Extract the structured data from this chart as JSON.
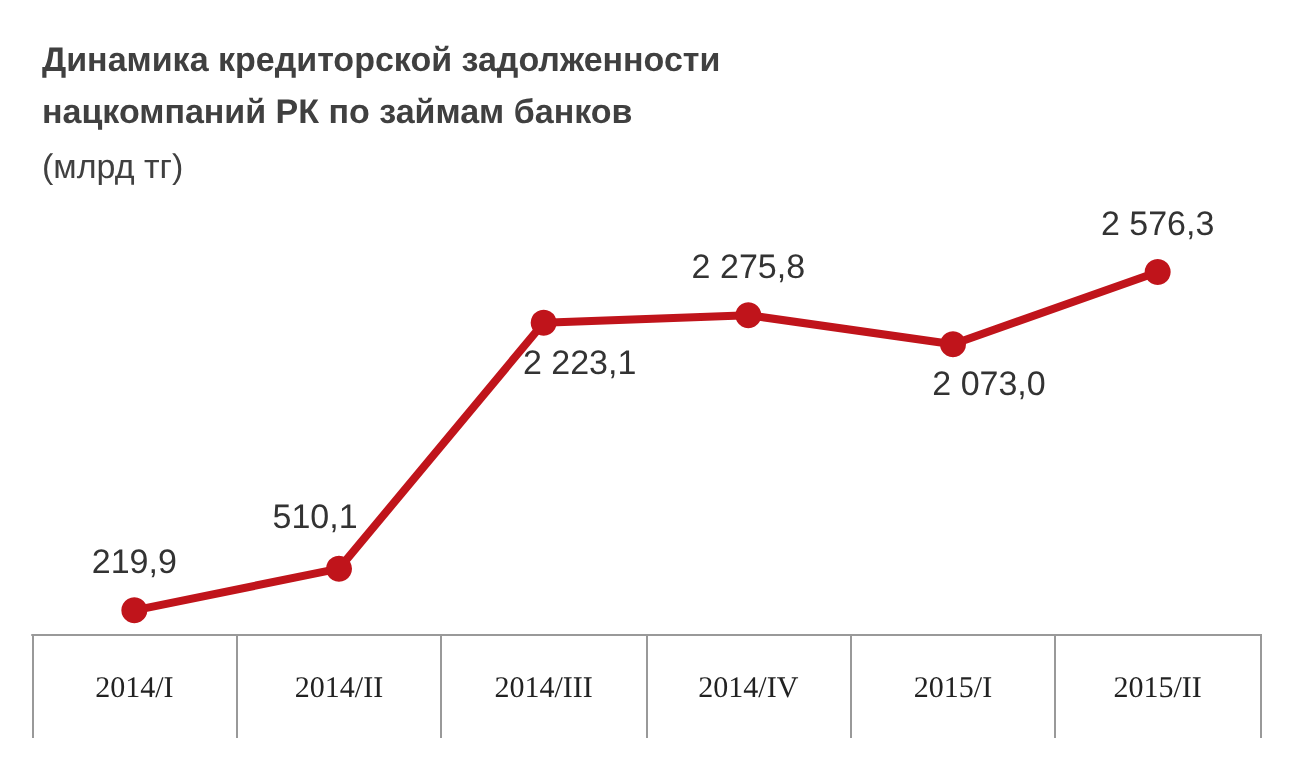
{
  "chart_data": {
    "type": "line",
    "title": "Динамика кредиторской задолженности нацкомпаний РК по займам банков",
    "subtitle": "(млрд тг)",
    "categories": [
      "2014/I",
      "2014/II",
      "2014/III",
      "2014/IV",
      "2015/I",
      "2015/II"
    ],
    "series": [
      {
        "color": "#c0141b",
        "values": [
          219.9,
          510.1,
          2223.1,
          2275.8,
          2073.0,
          2576.3
        ],
        "value_labels": [
          "219,9",
          "510,1",
          "2 223,1",
          "2 275,8",
          "2 073,0",
          "2 576,3"
        ]
      }
    ],
    "marker": "circle",
    "line_style": "solid",
    "grid": false
  }
}
